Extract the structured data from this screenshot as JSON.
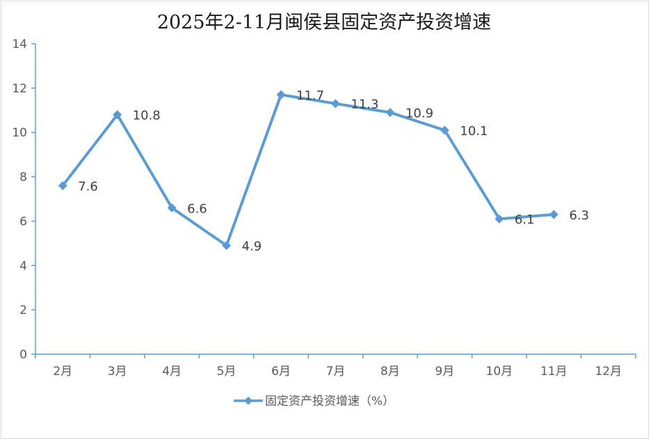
{
  "chart_data": {
    "type": "line",
    "title": "2025年2-11月闽侯县固定资产投资增速",
    "categories": [
      "2月",
      "3月",
      "4月",
      "5月",
      "6月",
      "7月",
      "8月",
      "9月",
      "10月",
      "11月",
      "12月"
    ],
    "series": [
      {
        "name": "固定资产投资增速（%）",
        "values": [
          7.6,
          10.8,
          6.6,
          4.9,
          11.7,
          11.3,
          10.9,
          10.1,
          6.1,
          6.3,
          null
        ],
        "color": "#5b9bd5",
        "marker": "diamond"
      }
    ],
    "yticks": [
      "0",
      "2",
      "4",
      "6",
      "8",
      "10",
      "12",
      "14"
    ],
    "ylim": [
      0,
      14
    ],
    "grid": false,
    "legend": "bottom",
    "data_labels": [
      "7.6",
      "10.8",
      "6.6",
      "4.9",
      "11.7",
      "11.3",
      "10.9",
      "10.1",
      "6.1",
      "6.3"
    ]
  },
  "colors": {
    "axis": "#5b9bd5",
    "series": "#5b9bd5"
  }
}
